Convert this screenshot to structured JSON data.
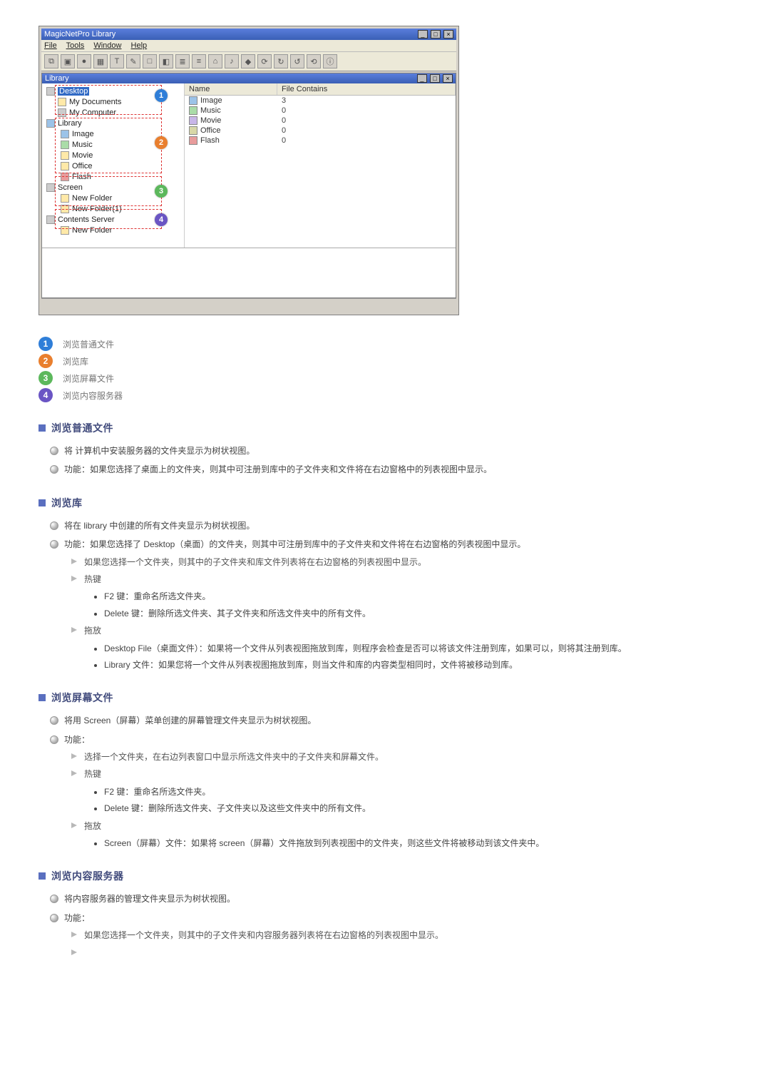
{
  "colors": {
    "bubble1": "#2f7ed8",
    "bubble2": "#e97f2e",
    "bubble3": "#5cb85c",
    "bubble4": "#6a55c4",
    "heading": "#414b7c"
  },
  "app": {
    "title": "MagicNetPro Library",
    "menus": [
      "File",
      "Tools",
      "Window",
      "Help"
    ],
    "inner_title": "Library",
    "list_headers": {
      "c1": "Name",
      "c2": "File Contains"
    },
    "list_rows": [
      {
        "name": "Image",
        "count": "3",
        "color": "#9cc3e8"
      },
      {
        "name": "Music",
        "count": "0",
        "color": "#aadca8"
      },
      {
        "name": "Movie",
        "count": "0",
        "color": "#c8b6e8"
      },
      {
        "name": "Office",
        "count": "0",
        "color": "#d8d8a8"
      },
      {
        "name": "Flash",
        "count": "0",
        "color": "#e89c9c"
      }
    ],
    "tree": {
      "desktop": "Desktop",
      "mydocs": "My Documents",
      "mycomp": "My Computer",
      "library": "Library",
      "image": "Image",
      "music": "Music",
      "movie": "Movie",
      "office": "Office",
      "flash": "Flash",
      "screen": "Screen",
      "newfolder": "New Folder",
      "newfolder1": "New Folder(1)",
      "contents": "Contents Server",
      "newfolder_cs": "New Folder"
    }
  },
  "legend": [
    {
      "n": "1",
      "color": "#2f7ed8",
      "text": "浏览普通文件"
    },
    {
      "n": "2",
      "color": "#e97f2e",
      "text": "浏览库"
    },
    {
      "n": "3",
      "color": "#5cb85c",
      "text": "浏览屏幕文件"
    },
    {
      "n": "4",
      "color": "#6a55c4",
      "text": "浏览内容服务器"
    }
  ],
  "s1": {
    "title": "浏览普通文件",
    "b1": "将 计算机中安装服务器的文件夹显示为树状视图。",
    "b2": "功能：如果您选择了桌面上的文件夹，则其中可注册到库中的子文件夹和文件将在右边窗格中的列表视图中显示。"
  },
  "s2": {
    "title": "浏览库",
    "b1": "将在 library 中创建的所有文件夹显示为树状视图。",
    "b2": "功能：如果您选择了 Desktop（桌面）的文件夹，则其中可注册到库中的子文件夹和文件将在右边窗格的列表视图中显示。",
    "sb1": "如果您选择一个文件夹，则其中的子文件夹和库文件列表将在右边窗格的列表视图中显示。",
    "sb2": "热键",
    "k1": "F2 键：重命名所选文件夹。",
    "k2": "Delete 键：删除所选文件夹、其子文件夹和所选文件夹中的所有文件。",
    "sb3": "拖放",
    "d1": "Desktop File（桌面文件）：如果将一个文件从列表视图拖放到库，则程序会检查是否可以将该文件注册到库，如果可以，则将其注册到库。",
    "d2": "Library 文件：如果您将一个文件从列表视图拖放到库，则当文件和库的内容类型相同时，文件将被移动到库。"
  },
  "s3": {
    "title": "浏览屏幕文件",
    "b1": "将用 Screen（屏幕）菜单创建的屏幕管理文件夹显示为树状视图。",
    "b2": "功能：",
    "sb1": "选择一个文件夹，在右边列表窗口中显示所选文件夹中的子文件夹和屏幕文件。",
    "sb2": "热键",
    "k1": "F2 键：重命名所选文件夹。",
    "k2": "Delete 键：删除所选文件夹、子文件夹以及这些文件夹中的所有文件。",
    "sb3": "拖放",
    "d1": "Screen（屏幕）文件：如果将 screen（屏幕）文件拖放到列表视图中的文件夹，则这些文件将被移动到该文件夹中。"
  },
  "s4": {
    "title": "浏览内容服务器",
    "b1": "将内容服务器的管理文件夹显示为树状视图。",
    "b2": "功能：",
    "sb1": "如果您选择一个文件夹，则其中的子文件夹和内容服务器列表将在右边窗格的列表视图中显示。",
    "sb2": ""
  }
}
